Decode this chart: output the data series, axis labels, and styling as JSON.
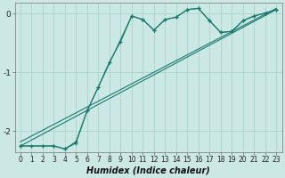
{
  "xlabel": "Humidex (Indice chaleur)",
  "background_color": "#cce8e4",
  "grid_color": "#aad4ce",
  "line_color": "#1a7a6e",
  "xlim": [
    -0.5,
    23.5
  ],
  "ylim": [
    -2.35,
    0.18
  ],
  "yticks": [
    0,
    -1,
    -2
  ],
  "xticks": [
    0,
    1,
    2,
    3,
    4,
    5,
    6,
    7,
    8,
    9,
    10,
    11,
    12,
    13,
    14,
    15,
    16,
    17,
    18,
    19,
    20,
    21,
    22,
    23
  ],
  "line1_x": [
    0,
    1,
    2,
    3,
    4,
    5,
    6,
    7,
    8,
    9,
    10,
    11,
    12,
    13,
    14,
    15,
    16,
    17,
    18,
    19,
    20,
    21,
    22,
    23
  ],
  "line1_y": [
    -2.25,
    -2.25,
    -2.25,
    -2.25,
    -2.3,
    -2.2,
    -1.65,
    -1.25,
    -0.82,
    -0.48,
    -0.04,
    -0.1,
    -0.28,
    -0.1,
    -0.06,
    0.07,
    0.09,
    -0.12,
    -0.32,
    -0.3,
    -0.12,
    -0.04,
    0.01,
    0.07
  ],
  "line2_x": [
    0,
    3,
    4,
    5,
    6,
    7,
    10,
    11,
    12,
    13,
    14,
    15,
    16,
    17,
    18,
    19,
    20,
    21,
    22,
    23
  ],
  "line2_y": [
    -2.25,
    -2.25,
    -2.3,
    -2.18,
    -1.65,
    -1.25,
    -0.04,
    -0.1,
    -0.28,
    -0.1,
    -0.06,
    0.07,
    0.09,
    -0.12,
    -0.32,
    -0.3,
    -0.12,
    -0.04,
    0.01,
    0.07
  ],
  "trend_x": [
    0,
    23
  ],
  "trend_y": [
    -2.25,
    0.07
  ],
  "trend2_x": [
    0,
    23
  ],
  "trend2_y": [
    -2.18,
    0.09
  ]
}
